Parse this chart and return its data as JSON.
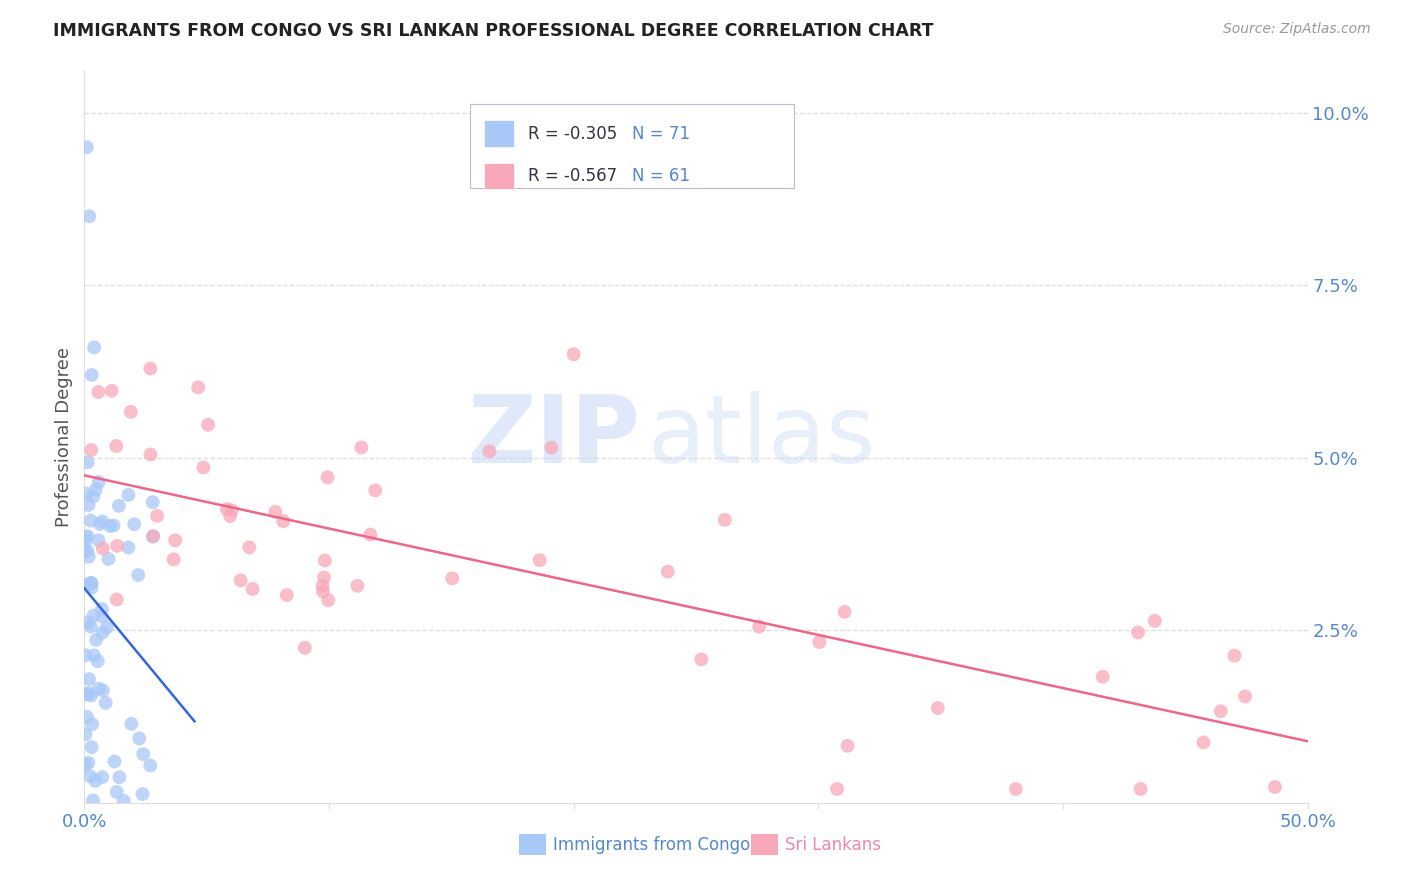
{
  "title": "IMMIGRANTS FROM CONGO VS SRI LANKAN PROFESSIONAL DEGREE CORRELATION CHART",
  "source": "Source: ZipAtlas.com",
  "ylabel": "Professional Degree",
  "legend_label1": "Immigrants from Congo",
  "legend_label2": "Sri Lankans",
  "color_blue": "#a8c8f8",
  "color_pink": "#f8a8b8",
  "color_line_blue": "#3366dd",
  "color_line_pink": "#ee6688",
  "watermark_zip": "ZIP",
  "watermark_atlas": "atlas",
  "xlim": [
    0.0,
    0.5
  ],
  "ylim": [
    0.0,
    0.106
  ],
  "yticks": [
    0.025,
    0.05,
    0.075,
    0.1
  ],
  "ytick_labels": [
    "2.5%",
    "5.0%",
    "7.5%",
    "10.0%"
  ],
  "xtick_vals": [
    0.0,
    0.5
  ],
  "xtick_labels": [
    "0.0%",
    "50.0%"
  ],
  "legend_r1_val": "R = -0.305",
  "legend_n1_val": "N = 71",
  "legend_r2_val": "R = -0.567",
  "legend_n2_val": "N = 61",
  "tick_color": "#5588cc",
  "grid_color": "#dddddd",
  "title_color": "#222222",
  "source_color": "#999999",
  "ylabel_color": "#555555",
  "congo_seed": 42,
  "srilanka_seed": 99,
  "dot_size": 100,
  "dot_alpha": 0.75
}
